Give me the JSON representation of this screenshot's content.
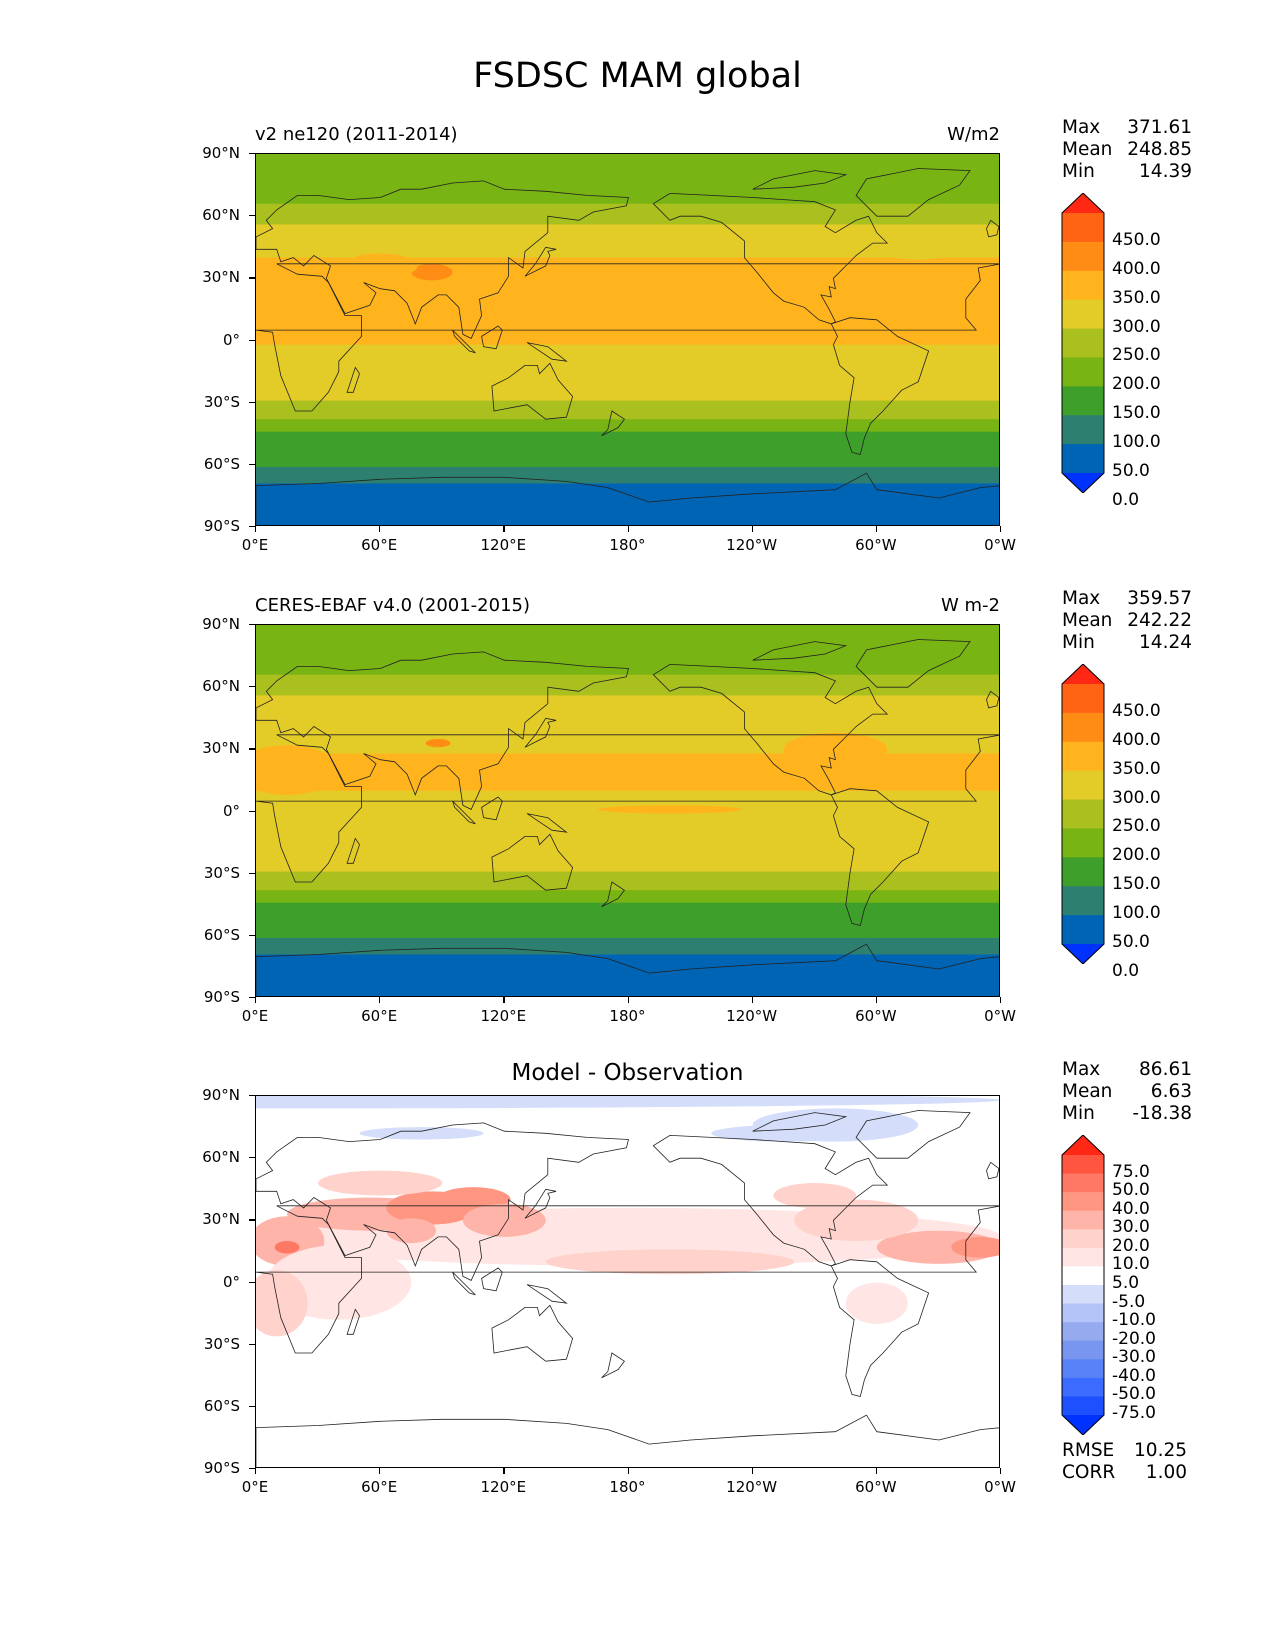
{
  "title": "FSDSC MAM global",
  "colors": {
    "seq": [
      "#0032ff",
      "#0064b4",
      "#2d8070",
      "#3ea02a",
      "#78b414",
      "#aac01e",
      "#e4cc28",
      "#ffb41e",
      "#ff8c14",
      "#ff6414",
      "#ff2814"
    ],
    "div": [
      "#0032ff",
      "#1e50ff",
      "#3c6cff",
      "#5a82f8",
      "#7896f0",
      "#96aaf0",
      "#b4c3f8",
      "#d4ddfa",
      "#ffffff",
      "#ffe6e4",
      "#ffd2cc",
      "#ffb4aa",
      "#ff9682",
      "#ff7864",
      "#ff5541",
      "#ff2814"
    ]
  },
  "axes": {
    "lat_ticks": [
      "90°N",
      "60°N",
      "30°N",
      "0°",
      "30°S",
      "60°S",
      "90°S"
    ],
    "lon_ticks": [
      "0°E",
      "60°E",
      "120°E",
      "180°",
      "120°W",
      "60°W",
      "0°W"
    ]
  },
  "panels": [
    {
      "subtitle_left": "v2 ne120 (2011-2014)",
      "subtitle_right": "W/m2",
      "subtitle_center": "",
      "stats": [
        {
          "label": "Max",
          "value": "371.61"
        },
        {
          "label": "Mean",
          "value": "248.85"
        },
        {
          "label": "Min",
          "value": "14.39"
        }
      ],
      "colorbar_labels": [
        "450.0",
        "400.0",
        "350.0",
        "300.0",
        "250.0",
        "200.0",
        "150.0",
        "100.0",
        "50.0",
        "0.0"
      ]
    },
    {
      "subtitle_left": "CERES-EBAF v4.0 (2001-2015)",
      "subtitle_right": "W m-2",
      "subtitle_center": "",
      "stats": [
        {
          "label": "Max",
          "value": "359.57"
        },
        {
          "label": "Mean",
          "value": "242.22"
        },
        {
          "label": "Min",
          "value": "14.24"
        }
      ],
      "colorbar_labels": [
        "450.0",
        "400.0",
        "350.0",
        "300.0",
        "250.0",
        "200.0",
        "150.0",
        "100.0",
        "50.0",
        "0.0"
      ]
    },
    {
      "subtitle_left": "",
      "subtitle_right": "",
      "subtitle_center": "Model - Observation",
      "stats": [
        {
          "label": "Max",
          "value": "86.61"
        },
        {
          "label": "Mean",
          "value": "6.63"
        },
        {
          "label": "Min",
          "value": "-18.38"
        }
      ],
      "colorbar_labels": [
        "75.0",
        "50.0",
        "40.0",
        "30.0",
        "20.0",
        "10.0",
        "5.0",
        "-5.0",
        "-10.0",
        "-20.0",
        "-30.0",
        "-40.0",
        "-50.0",
        "-75.0"
      ],
      "error_stats": [
        {
          "label": "RMSE",
          "value": "10.25"
        },
        {
          "label": "CORR",
          "value": "1.00"
        }
      ]
    }
  ]
}
